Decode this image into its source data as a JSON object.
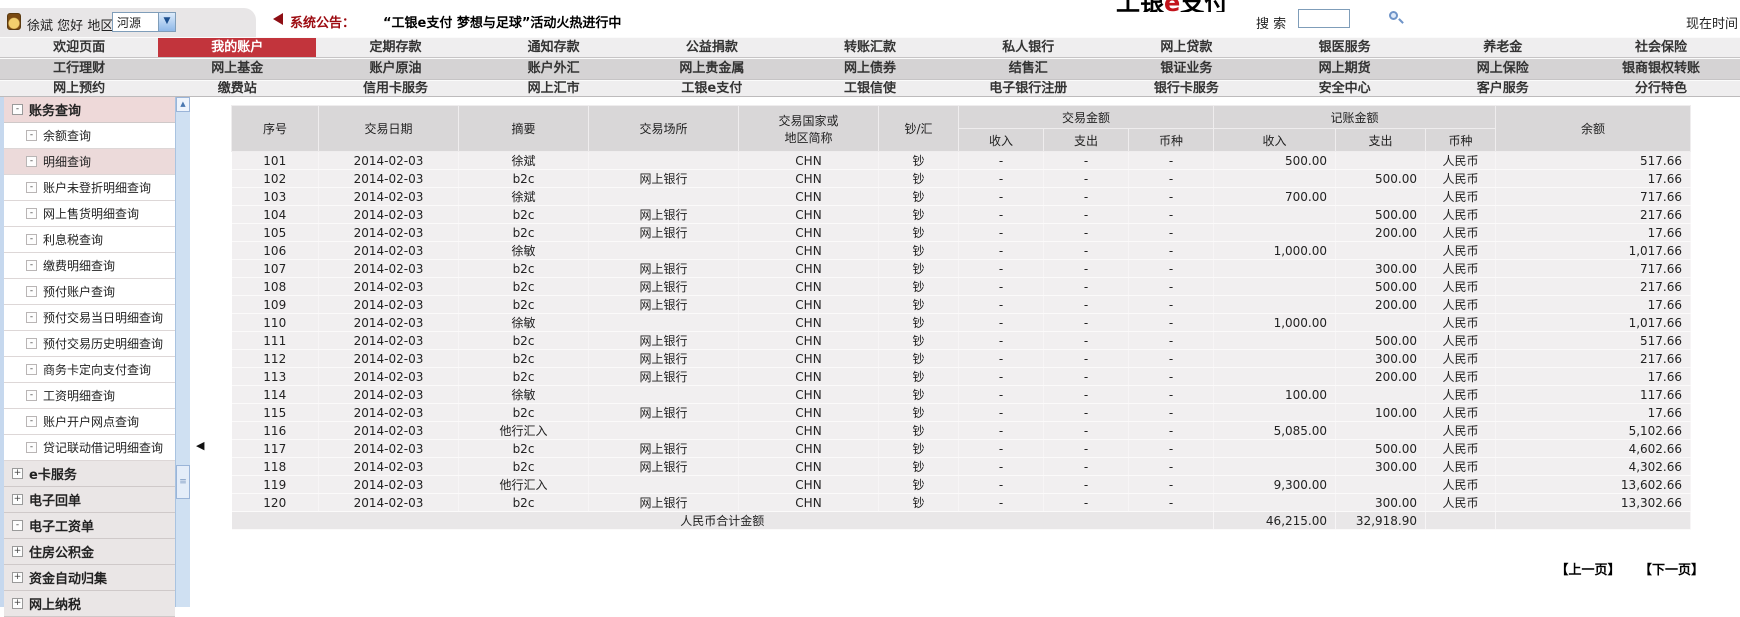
{
  "topbar": {
    "user_name": "徐斌",
    "greeting": "您好",
    "region_label": "地区：",
    "region_value": "河源",
    "announcement_label": "系统公告：",
    "announcement_text": "“工银e支付 梦想与足球”活动火热进行中",
    "logo_left": "工银",
    "logo_e": "e",
    "logo_right": "支付",
    "search_label": "搜 索",
    "search_value": "",
    "time_label": "现在时间"
  },
  "nav": {
    "rows": [
      {
        "items": [
          {
            "label": "欢迎页面",
            "active": false
          },
          {
            "label": "我的账户",
            "active": true
          },
          {
            "label": "定期存款",
            "active": false
          },
          {
            "label": "通知存款",
            "active": false
          },
          {
            "label": "公益捐款",
            "active": false
          },
          {
            "label": "转账汇款",
            "active": false
          },
          {
            "label": "私人银行",
            "active": false
          },
          {
            "label": "网上贷款",
            "active": false
          },
          {
            "label": "银医服务",
            "active": false
          },
          {
            "label": "养老金",
            "active": false
          },
          {
            "label": "社会保险",
            "active": false
          }
        ]
      },
      {
        "items": [
          {
            "label": "工行理财",
            "active": false
          },
          {
            "label": "网上基金",
            "active": false
          },
          {
            "label": "账户原油",
            "active": false
          },
          {
            "label": "账户外汇",
            "active": false
          },
          {
            "label": "网上贵金属",
            "active": false
          },
          {
            "label": "网上债券",
            "active": false
          },
          {
            "label": "结售汇",
            "active": false
          },
          {
            "label": "银证业务",
            "active": false
          },
          {
            "label": "网上期货",
            "active": false
          },
          {
            "label": "网上保险",
            "active": false
          },
          {
            "label": "银商银权转账",
            "active": false
          }
        ]
      },
      {
        "items": [
          {
            "label": "网上预约",
            "active": false
          },
          {
            "label": "缴费站",
            "active": false
          },
          {
            "label": "信用卡服务",
            "active": false
          },
          {
            "label": "网上汇市",
            "active": false
          },
          {
            "label": "工银e支付",
            "active": false
          },
          {
            "label": "工银信使",
            "active": false
          },
          {
            "label": "电子银行注册",
            "active": false
          },
          {
            "label": "银行卡服务",
            "active": false
          },
          {
            "label": "安全中心",
            "active": false
          },
          {
            "label": "客户服务",
            "active": false
          },
          {
            "label": "分行特色",
            "active": false
          }
        ]
      }
    ]
  },
  "sidebar": {
    "items": [
      {
        "label": "账务查询",
        "type": "group-open",
        "icon": "-",
        "selected": false
      },
      {
        "label": "余额查询",
        "type": "sub",
        "icon": "-",
        "selected": false
      },
      {
        "label": "明细查询",
        "type": "sub",
        "icon": "-",
        "selected": true
      },
      {
        "label": "账户未登折明细查询",
        "type": "sub",
        "icon": "-",
        "selected": false
      },
      {
        "label": "网上售货明细查询",
        "type": "sub",
        "icon": "-",
        "selected": false
      },
      {
        "label": "利息税查询",
        "type": "sub",
        "icon": "-",
        "selected": false
      },
      {
        "label": "缴费明细查询",
        "type": "sub",
        "icon": "-",
        "selected": false
      },
      {
        "label": "预付账户查询",
        "type": "sub",
        "icon": "-",
        "selected": false
      },
      {
        "label": "预付交易当日明细查询",
        "type": "sub",
        "icon": "-",
        "selected": false
      },
      {
        "label": "预付交易历史明细查询",
        "type": "sub",
        "icon": "-",
        "selected": false
      },
      {
        "label": "商务卡定向支付查询",
        "type": "sub",
        "icon": "-",
        "selected": false
      },
      {
        "label": "工资明细查询",
        "type": "sub",
        "icon": "-",
        "selected": false
      },
      {
        "label": "账户开户网点查询",
        "type": "sub",
        "icon": "-",
        "selected": false
      },
      {
        "label": "贷记联动借记明细查询",
        "type": "sub",
        "icon": "-",
        "selected": false
      },
      {
        "label": "e卡服务",
        "type": "group",
        "icon": "+",
        "selected": false
      },
      {
        "label": "电子回单",
        "type": "group",
        "icon": "+",
        "selected": false
      },
      {
        "label": "电子工资单",
        "type": "group",
        "icon": "-",
        "selected": false
      },
      {
        "label": "住房公积金",
        "type": "group",
        "icon": "+",
        "selected": false
      },
      {
        "label": "资金自动归集",
        "type": "group",
        "icon": "+",
        "selected": false
      },
      {
        "label": "网上纳税",
        "type": "group",
        "icon": "+",
        "selected": false
      }
    ]
  },
  "table": {
    "header": {
      "seq": "序号",
      "date": "交易日期",
      "summary": "摘要",
      "place": "交易场所",
      "country_line1": "交易国家或",
      "country_line2": "地区简称",
      "cash": "钞/汇",
      "trade_group": "交易金额",
      "record_group": "记账金额",
      "income": "收入",
      "expense": "支出",
      "currency": "币种",
      "balance": "余额"
    },
    "col_keys": [
      "seq",
      "date",
      "summary",
      "place",
      "country",
      "cash-type",
      "trade-income",
      "trade-expense",
      "trade-currency",
      "record-income",
      "record-expense",
      "record-currency",
      "balance"
    ],
    "num_cols": [
      9,
      10,
      12
    ],
    "rows": [
      [
        "101",
        "2014-02-03",
        "徐斌",
        "",
        "CHN",
        "钞",
        "-",
        "-",
        "-",
        "500.00",
        "",
        "人民币",
        "517.66"
      ],
      [
        "102",
        "2014-02-03",
        "b2c",
        "网上银行",
        "CHN",
        "钞",
        "-",
        "-",
        "-",
        "",
        "500.00",
        "人民币",
        "17.66"
      ],
      [
        "103",
        "2014-02-03",
        "徐斌",
        "",
        "CHN",
        "钞",
        "-",
        "-",
        "-",
        "700.00",
        "",
        "人民币",
        "717.66"
      ],
      [
        "104",
        "2014-02-03",
        "b2c",
        "网上银行",
        "CHN",
        "钞",
        "-",
        "-",
        "-",
        "",
        "500.00",
        "人民币",
        "217.66"
      ],
      [
        "105",
        "2014-02-03",
        "b2c",
        "网上银行",
        "CHN",
        "钞",
        "-",
        "-",
        "-",
        "",
        "200.00",
        "人民币",
        "17.66"
      ],
      [
        "106",
        "2014-02-03",
        "徐敏",
        "",
        "CHN",
        "钞",
        "-",
        "-",
        "-",
        "1,000.00",
        "",
        "人民币",
        "1,017.66"
      ],
      [
        "107",
        "2014-02-03",
        "b2c",
        "网上银行",
        "CHN",
        "钞",
        "-",
        "-",
        "-",
        "",
        "300.00",
        "人民币",
        "717.66"
      ],
      [
        "108",
        "2014-02-03",
        "b2c",
        "网上银行",
        "CHN",
        "钞",
        "-",
        "-",
        "-",
        "",
        "500.00",
        "人民币",
        "217.66"
      ],
      [
        "109",
        "2014-02-03",
        "b2c",
        "网上银行",
        "CHN",
        "钞",
        "-",
        "-",
        "-",
        "",
        "200.00",
        "人民币",
        "17.66"
      ],
      [
        "110",
        "2014-02-03",
        "徐敏",
        "",
        "CHN",
        "钞",
        "-",
        "-",
        "-",
        "1,000.00",
        "",
        "人民币",
        "1,017.66"
      ],
      [
        "111",
        "2014-02-03",
        "b2c",
        "网上银行",
        "CHN",
        "钞",
        "-",
        "-",
        "-",
        "",
        "500.00",
        "人民币",
        "517.66"
      ],
      [
        "112",
        "2014-02-03",
        "b2c",
        "网上银行",
        "CHN",
        "钞",
        "-",
        "-",
        "-",
        "",
        "300.00",
        "人民币",
        "217.66"
      ],
      [
        "113",
        "2014-02-03",
        "b2c",
        "网上银行",
        "CHN",
        "钞",
        "-",
        "-",
        "-",
        "",
        "200.00",
        "人民币",
        "17.66"
      ],
      [
        "114",
        "2014-02-03",
        "徐敏",
        "",
        "CHN",
        "钞",
        "-",
        "-",
        "-",
        "100.00",
        "",
        "人民币",
        "117.66"
      ],
      [
        "115",
        "2014-02-03",
        "b2c",
        "网上银行",
        "CHN",
        "钞",
        "-",
        "-",
        "-",
        "",
        "100.00",
        "人民币",
        "17.66"
      ],
      [
        "116",
        "2014-02-03",
        "他行汇入",
        "",
        "CHN",
        "钞",
        "-",
        "-",
        "-",
        "5,085.00",
        "",
        "人民币",
        "5,102.66"
      ],
      [
        "117",
        "2014-02-03",
        "b2c",
        "网上银行",
        "CHN",
        "钞",
        "-",
        "-",
        "-",
        "",
        "500.00",
        "人民币",
        "4,602.66"
      ],
      [
        "118",
        "2014-02-03",
        "b2c",
        "网上银行",
        "CHN",
        "钞",
        "-",
        "-",
        "-",
        "",
        "300.00",
        "人民币",
        "4,302.66"
      ],
      [
        "119",
        "2014-02-03",
        "他行汇入",
        "",
        "CHN",
        "钞",
        "-",
        "-",
        "-",
        "9,300.00",
        "",
        "人民币",
        "13,602.66"
      ],
      [
        "120",
        "2014-02-03",
        "b2c",
        "网上银行",
        "CHN",
        "钞",
        "-",
        "-",
        "-",
        "",
        "300.00",
        "人民币",
        "13,302.66"
      ]
    ],
    "total": {
      "label": "人民币合计金额",
      "income": "46,215.00",
      "expense": "32,918.90"
    },
    "pagination": {
      "prev": "【上一页】",
      "next": "【下一页】"
    }
  }
}
